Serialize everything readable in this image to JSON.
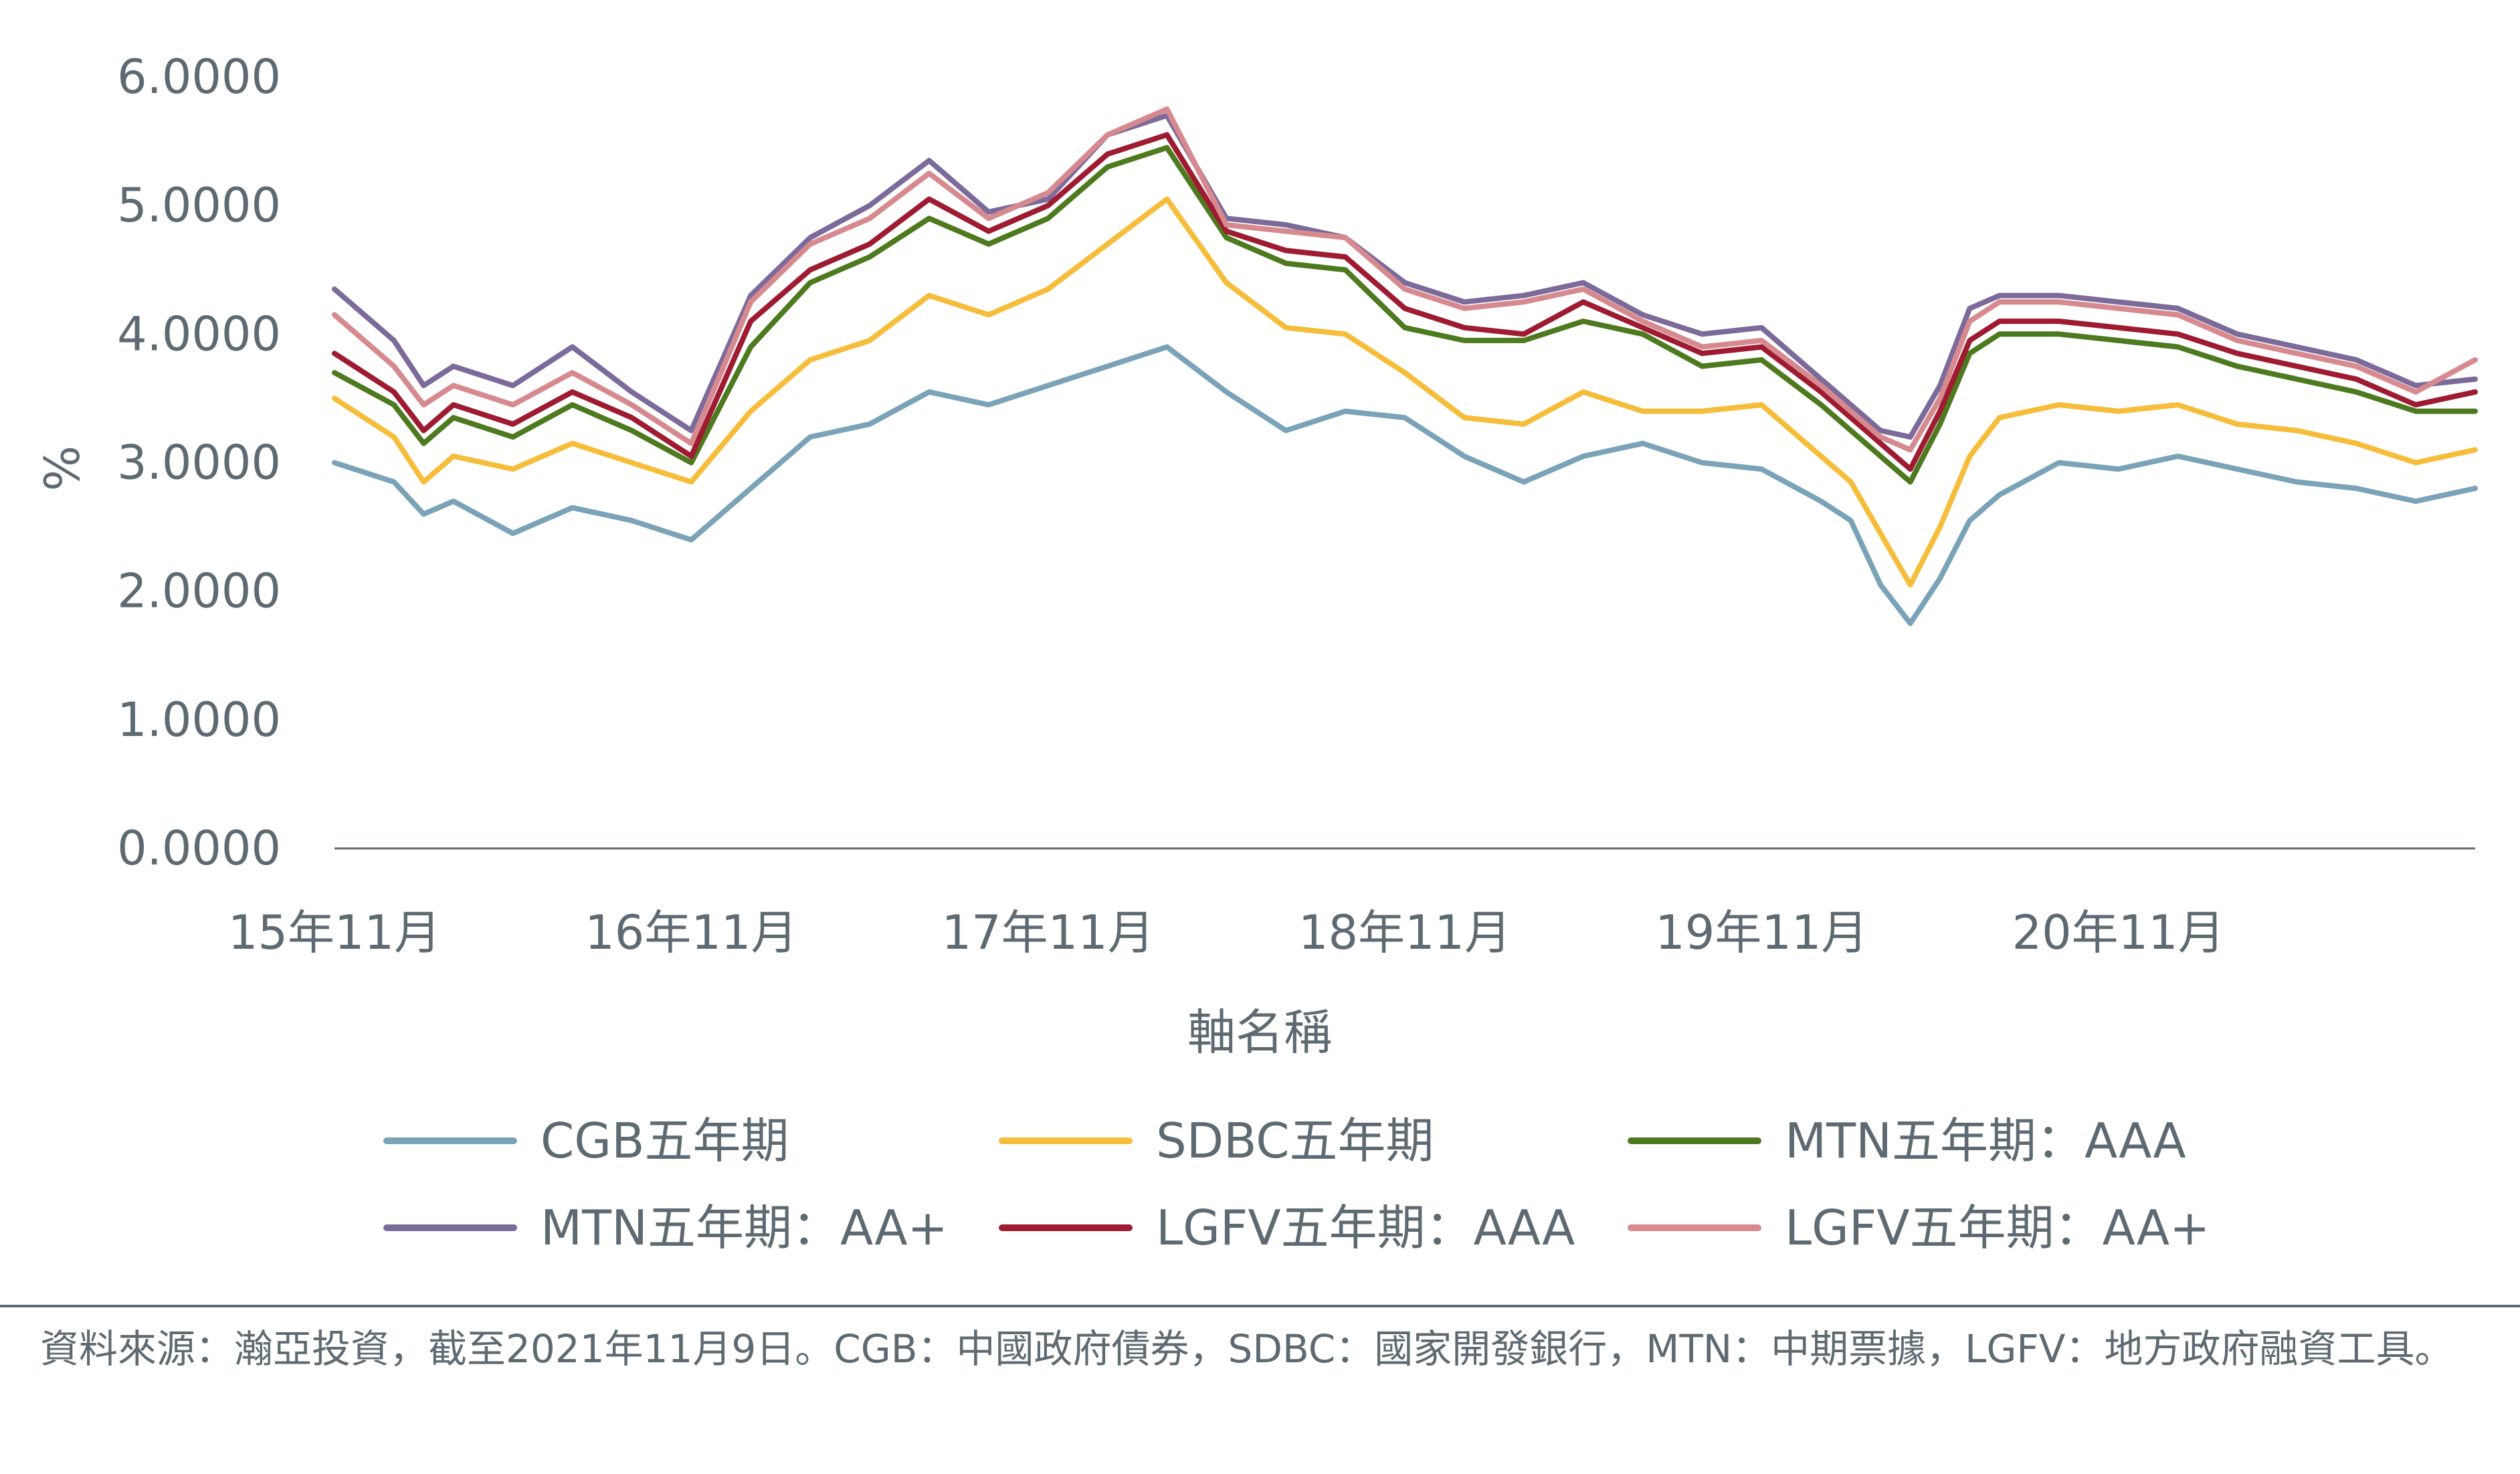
{
  "chart_data": {
    "type": "line",
    "title": "",
    "xlabel": "軸名稱",
    "ylabel": "%",
    "ylim": [
      0,
      6
    ],
    "yticks": [
      "0.0000",
      "1.0000",
      "2.0000",
      "3.0000",
      "4.0000",
      "5.0000",
      "6.0000"
    ],
    "xticks": [
      "15年11月",
      "16年11月",
      "17年11月",
      "18年11月",
      "19年11月",
      "20年11月"
    ],
    "x_range": [
      "2015-11",
      "2021-11"
    ],
    "grid": false,
    "legend_position": "bottom",
    "series": [
      {
        "name": "CGB五年期",
        "color": "#7aa3b8",
        "x": [
          "2015-11",
          "2016-01",
          "2016-02",
          "2016-03",
          "2016-05",
          "2016-07",
          "2016-09",
          "2016-11",
          "2017-01",
          "2017-03",
          "2017-05",
          "2017-07",
          "2017-09",
          "2017-11",
          "2018-01",
          "2018-03",
          "2018-05",
          "2018-07",
          "2018-09",
          "2018-11",
          "2019-01",
          "2019-03",
          "2019-05",
          "2019-07",
          "2019-09",
          "2019-11",
          "2020-01",
          "2020-02",
          "2020-03",
          "2020-04",
          "2020-05",
          "2020-06",
          "2020-07",
          "2020-09",
          "2020-11",
          "2021-01",
          "2021-03",
          "2021-05",
          "2021-07",
          "2021-09",
          "2021-11"
        ],
        "values": [
          3.0,
          2.85,
          2.6,
          2.7,
          2.45,
          2.65,
          2.55,
          2.4,
          2.8,
          3.2,
          3.3,
          3.55,
          3.45,
          3.6,
          3.75,
          3.9,
          3.55,
          3.25,
          3.4,
          3.35,
          3.05,
          2.85,
          3.05,
          3.15,
          3.0,
          2.95,
          2.7,
          2.55,
          2.05,
          1.75,
          2.1,
          2.55,
          2.75,
          3.0,
          2.95,
          3.05,
          2.95,
          2.85,
          2.8,
          2.7,
          2.8
        ]
      },
      {
        "name": "SDBC五年期",
        "color": "#f5bd3a",
        "x": [
          "2015-11",
          "2016-01",
          "2016-02",
          "2016-03",
          "2016-05",
          "2016-07",
          "2016-09",
          "2016-11",
          "2017-01",
          "2017-03",
          "2017-05",
          "2017-07",
          "2017-09",
          "2017-11",
          "2018-01",
          "2018-03",
          "2018-05",
          "2018-07",
          "2018-09",
          "2018-11",
          "2019-01",
          "2019-03",
          "2019-05",
          "2019-07",
          "2019-09",
          "2019-11",
          "2020-01",
          "2020-02",
          "2020-03",
          "2020-04",
          "2020-05",
          "2020-06",
          "2020-07",
          "2020-09",
          "2020-11",
          "2021-01",
          "2021-03",
          "2021-05",
          "2021-07",
          "2021-09",
          "2021-11"
        ],
        "values": [
          3.5,
          3.2,
          2.85,
          3.05,
          2.95,
          3.15,
          3.0,
          2.85,
          3.4,
          3.8,
          3.95,
          4.3,
          4.15,
          4.35,
          4.7,
          5.05,
          4.4,
          4.05,
          4.0,
          3.7,
          3.35,
          3.3,
          3.55,
          3.4,
          3.4,
          3.45,
          3.05,
          2.85,
          2.45,
          2.05,
          2.5,
          3.05,
          3.35,
          3.45,
          3.4,
          3.45,
          3.3,
          3.25,
          3.15,
          3.0,
          3.1
        ]
      },
      {
        "name": "MTN五年期：AAA",
        "color": "#4e7a1f",
        "x": [
          "2015-11",
          "2016-01",
          "2016-02",
          "2016-03",
          "2016-05",
          "2016-07",
          "2016-09",
          "2016-11",
          "2017-01",
          "2017-03",
          "2017-05",
          "2017-07",
          "2017-09",
          "2017-11",
          "2018-01",
          "2018-03",
          "2018-05",
          "2018-07",
          "2018-09",
          "2018-11",
          "2019-01",
          "2019-03",
          "2019-05",
          "2019-07",
          "2019-09",
          "2019-11",
          "2020-01",
          "2020-02",
          "2020-03",
          "2020-04",
          "2020-05",
          "2020-06",
          "2020-07",
          "2020-09",
          "2020-11",
          "2021-01",
          "2021-03",
          "2021-05",
          "2021-07",
          "2021-09",
          "2021-11"
        ],
        "values": [
          3.7,
          3.45,
          3.15,
          3.35,
          3.2,
          3.45,
          3.25,
          3.0,
          3.9,
          4.4,
          4.6,
          4.9,
          4.7,
          4.9,
          5.3,
          5.45,
          4.75,
          4.55,
          4.5,
          4.05,
          3.95,
          3.95,
          4.1,
          4.0,
          3.75,
          3.8,
          3.45,
          3.25,
          3.05,
          2.85,
          3.3,
          3.85,
          4.0,
          4.0,
          3.95,
          3.9,
          3.75,
          3.65,
          3.55,
          3.4,
          3.4
        ]
      },
      {
        "name": "MTN五年期：AA+",
        "color": "#7b6a9a",
        "x": [
          "2015-11",
          "2016-01",
          "2016-02",
          "2016-03",
          "2016-05",
          "2016-07",
          "2016-09",
          "2016-11",
          "2017-01",
          "2017-03",
          "2017-05",
          "2017-07",
          "2017-09",
          "2017-11",
          "2018-01",
          "2018-03",
          "2018-05",
          "2018-07",
          "2018-09",
          "2018-11",
          "2019-01",
          "2019-03",
          "2019-05",
          "2019-07",
          "2019-09",
          "2019-11",
          "2020-01",
          "2020-02",
          "2020-03",
          "2020-04",
          "2020-05",
          "2020-06",
          "2020-07",
          "2020-09",
          "2020-11",
          "2021-01",
          "2021-03",
          "2021-05",
          "2021-07",
          "2021-09",
          "2021-11"
        ],
        "values": [
          4.35,
          3.95,
          3.6,
          3.75,
          3.6,
          3.9,
          3.55,
          3.25,
          4.3,
          4.75,
          5.0,
          5.35,
          4.95,
          5.05,
          5.55,
          5.7,
          4.9,
          4.85,
          4.75,
          4.4,
          4.25,
          4.3,
          4.4,
          4.15,
          4.0,
          4.05,
          3.65,
          3.45,
          3.25,
          3.2,
          3.6,
          4.2,
          4.3,
          4.3,
          4.25,
          4.2,
          4.0,
          3.9,
          3.8,
          3.6,
          3.65
        ]
      },
      {
        "name": "LGFV五年期：AAA",
        "color": "#9e1b32",
        "x": [
          "2015-11",
          "2016-01",
          "2016-02",
          "2016-03",
          "2016-05",
          "2016-07",
          "2016-09",
          "2016-11",
          "2017-01",
          "2017-03",
          "2017-05",
          "2017-07",
          "2017-09",
          "2017-11",
          "2018-01",
          "2018-03",
          "2018-05",
          "2018-07",
          "2018-09",
          "2018-11",
          "2019-01",
          "2019-03",
          "2019-05",
          "2019-07",
          "2019-09",
          "2019-11",
          "2020-01",
          "2020-02",
          "2020-03",
          "2020-04",
          "2020-05",
          "2020-06",
          "2020-07",
          "2020-09",
          "2020-11",
          "2021-01",
          "2021-03",
          "2021-05",
          "2021-07",
          "2021-09",
          "2021-11"
        ],
        "values": [
          3.85,
          3.55,
          3.25,
          3.45,
          3.3,
          3.55,
          3.35,
          3.05,
          4.1,
          4.5,
          4.7,
          5.05,
          4.8,
          5.0,
          5.4,
          5.55,
          4.8,
          4.65,
          4.6,
          4.2,
          4.05,
          4.0,
          4.25,
          4.05,
          3.85,
          3.9,
          3.55,
          3.35,
          3.15,
          2.95,
          3.4,
          3.95,
          4.1,
          4.1,
          4.05,
          4.0,
          3.85,
          3.75,
          3.65,
          3.45,
          3.55
        ]
      },
      {
        "name": "LGFV五年期：AA+",
        "color": "#d68a8f",
        "x": [
          "2015-11",
          "2016-01",
          "2016-02",
          "2016-03",
          "2016-05",
          "2016-07",
          "2016-09",
          "2016-11",
          "2017-01",
          "2017-03",
          "2017-05",
          "2017-07",
          "2017-09",
          "2017-11",
          "2018-01",
          "2018-03",
          "2018-05",
          "2018-07",
          "2018-09",
          "2018-11",
          "2019-01",
          "2019-03",
          "2019-05",
          "2019-07",
          "2019-09",
          "2019-11",
          "2020-01",
          "2020-02",
          "2020-03",
          "2020-04",
          "2020-05",
          "2020-06",
          "2020-07",
          "2020-09",
          "2020-11",
          "2021-01",
          "2021-03",
          "2021-05",
          "2021-07",
          "2021-09",
          "2021-11"
        ],
        "values": [
          4.15,
          3.75,
          3.45,
          3.6,
          3.45,
          3.7,
          3.45,
          3.15,
          4.25,
          4.7,
          4.9,
          5.25,
          4.9,
          5.1,
          5.55,
          5.75,
          4.85,
          4.8,
          4.75,
          4.35,
          4.2,
          4.25,
          4.35,
          4.1,
          3.9,
          3.95,
          3.6,
          3.4,
          3.2,
          3.1,
          3.5,
          4.1,
          4.25,
          4.25,
          4.2,
          4.15,
          3.95,
          3.85,
          3.75,
          3.55,
          3.8
        ]
      }
    ]
  },
  "footnote": "資料來源：瀚亞投資，截至2021年11月9日。CGB：中國政府債券，SDBC：國家開發銀行，MTN：中期票據，LGFV：地方政府融資工具。"
}
